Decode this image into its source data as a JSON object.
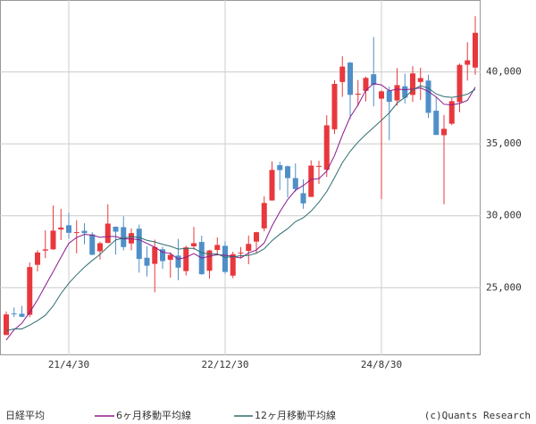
{
  "chart_data": {
    "type": "candlestick",
    "categories": [
      null,
      null,
      null,
      null,
      null,
      null,
      null,
      null,
      "21/4/30",
      null,
      null,
      null,
      null,
      null,
      null,
      null,
      null,
      null,
      null,
      null,
      null,
      null,
      null,
      null,
      null,
      null,
      null,
      null,
      "22/12/30",
      null,
      null,
      null,
      null,
      null,
      null,
      null,
      null,
      null,
      null,
      null,
      null,
      null,
      null,
      null,
      null,
      null,
      null,
      null,
      "24/8/30",
      null,
      null,
      null,
      null,
      null,
      null,
      null,
      null,
      null,
      null,
      null,
      null
    ],
    "series": [
      {
        "name": "日経平均",
        "up_color": "#e8383d",
        "down_color": "#4f8fc8",
        "open": [
          21710,
          23203,
          23185,
          23113,
          26588,
          27575,
          27664,
          29047,
          29340,
          28857,
          28952,
          28708,
          27532,
          28106,
          29235,
          29205,
          28073,
          29098,
          27079,
          26654,
          27666,
          26933,
          27229,
          26152,
          27875,
          28178,
          26174,
          27621,
          27907,
          25834,
          27402,
          27556,
          28203,
          29123,
          31064,
          33517,
          33441,
          32619,
          31567,
          31309,
          33432,
          33193,
          36012,
          39300,
          40646,
          38416,
          38681,
          39839,
          38140,
          38700,
          38016,
          39000,
          38400,
          39300,
          39400,
          37300,
          35600,
          36400,
          37900,
          40500,
          40300
        ],
        "high": [
          23338,
          23623,
          23725,
          26753,
          27602,
          28979,
          30714,
          30485,
          30208,
          29686,
          29480,
          28852,
          28187,
          30796,
          29256,
          29960,
          29121,
          29388,
          27880,
          28338,
          27850,
          27458,
          28389,
          27915,
          29223,
          28614,
          27631,
          28502,
          28227,
          27500,
          27821,
          28623,
          28878,
          31352,
          33772,
          33762,
          33488,
          33634,
          32533,
          33853,
          33822,
          36984,
          39426,
          41088,
          40697,
          39437,
          39667,
          42427,
          38734,
          38975,
          40258,
          39885,
          40398,
          40288,
          39800,
          38220,
          37000,
          38173,
          40588,
          42065,
          43877
        ],
        "low": [
          21710,
          22954,
          22948,
          22948,
          26124,
          27056,
          27628,
          28308,
          28420,
          27385,
          28010,
          27273,
          26954,
          28106,
          27294,
          27588,
          27594,
          26044,
          25776,
          24682,
          26304,
          25689,
          25521,
          25850,
          27649,
          25900,
          25622,
          27237,
          25953,
          25662,
          27096,
          26632,
          27427,
          28914,
          31050,
          31791,
          31275,
          31674,
          30487,
          31309,
          32205,
          32693,
          35688,
          38271,
          36733,
          37617,
          37950,
          37611,
          31156,
          35248,
          37652,
          37800,
          37921,
          38055,
          36793,
          35618,
          30793,
          36300,
          37200,
          39400,
          39800
        ],
        "close": [
          23140,
          23185,
          22977,
          26434,
          27444,
          27663,
          28966,
          29179,
          28813,
          28860,
          28792,
          27284,
          28090,
          29453,
          28893,
          27822,
          28792,
          27002,
          26527,
          27821,
          26848,
          27280,
          26393,
          27802,
          28092,
          25937,
          27587,
          27969,
          26095,
          27327,
          27446,
          28041,
          28856,
          30888,
          33189,
          33172,
          32619,
          31858,
          30859,
          33487,
          33464,
          36287,
          39166,
          40369,
          38406,
          38488,
          39583,
          39102,
          38648,
          37920,
          39081,
          38208,
          39895,
          39573,
          37156,
          35618,
          36046,
          37965,
          40487,
          40807,
          42718
        ]
      },
      {
        "name": "6ヶ月移動平均線",
        "color": "#8b1a8b",
        "values": [
          21360,
          22070,
          22530,
          23290,
          24150,
          25140,
          26110,
          27110,
          28080,
          28490,
          28710,
          28650,
          28500,
          28550,
          28560,
          28390,
          28390,
          28340,
          28080,
          27810,
          27470,
          27380,
          26980,
          27110,
          27370,
          27060,
          27180,
          27300,
          27250,
          27170,
          27060,
          27410,
          27620,
          28110,
          29290,
          30270,
          31130,
          31770,
          32100,
          32530,
          32580,
          33100,
          34190,
          35610,
          36870,
          37700,
          38720,
          39190,
          39100,
          38690,
          38800,
          38760,
          38810,
          38890,
          38640,
          38260,
          37750,
          37710,
          37810,
          38020,
          38940
        ]
      },
      {
        "name": "12ヶ月移動平均線",
        "color": "#2e6e6e",
        "values": [
          22010,
          22130,
          22130,
          22400,
          22710,
          23080,
          23730,
          24590,
          25310,
          25890,
          26430,
          26890,
          27310,
          27830,
          28320,
          28440,
          28550,
          28490,
          28290,
          28180,
          28010,
          27880,
          27680,
          27730,
          27730,
          27430,
          27330,
          27340,
          27110,
          27140,
          27220,
          27240,
          27400,
          27700,
          28270,
          28720,
          29100,
          29590,
          29860,
          30320,
          30940,
          31680,
          32660,
          33690,
          34480,
          35120,
          35650,
          36140,
          36640,
          37150,
          37830,
          38230,
          38760,
          39040,
          38870,
          38470,
          38280,
          38230,
          38310,
          38450,
          38790
        ]
      }
    ],
    "ylim": [
      20300,
      45000
    ],
    "yticks": [
      {
        "value": 25000,
        "label": "25,000"
      },
      {
        "value": 30000,
        "label": "30,000"
      },
      {
        "value": 35000,
        "label": "35,000"
      },
      {
        "value": 40000,
        "label": "40,000"
      }
    ],
    "grid": true,
    "source": "(c)Quants Research"
  }
}
